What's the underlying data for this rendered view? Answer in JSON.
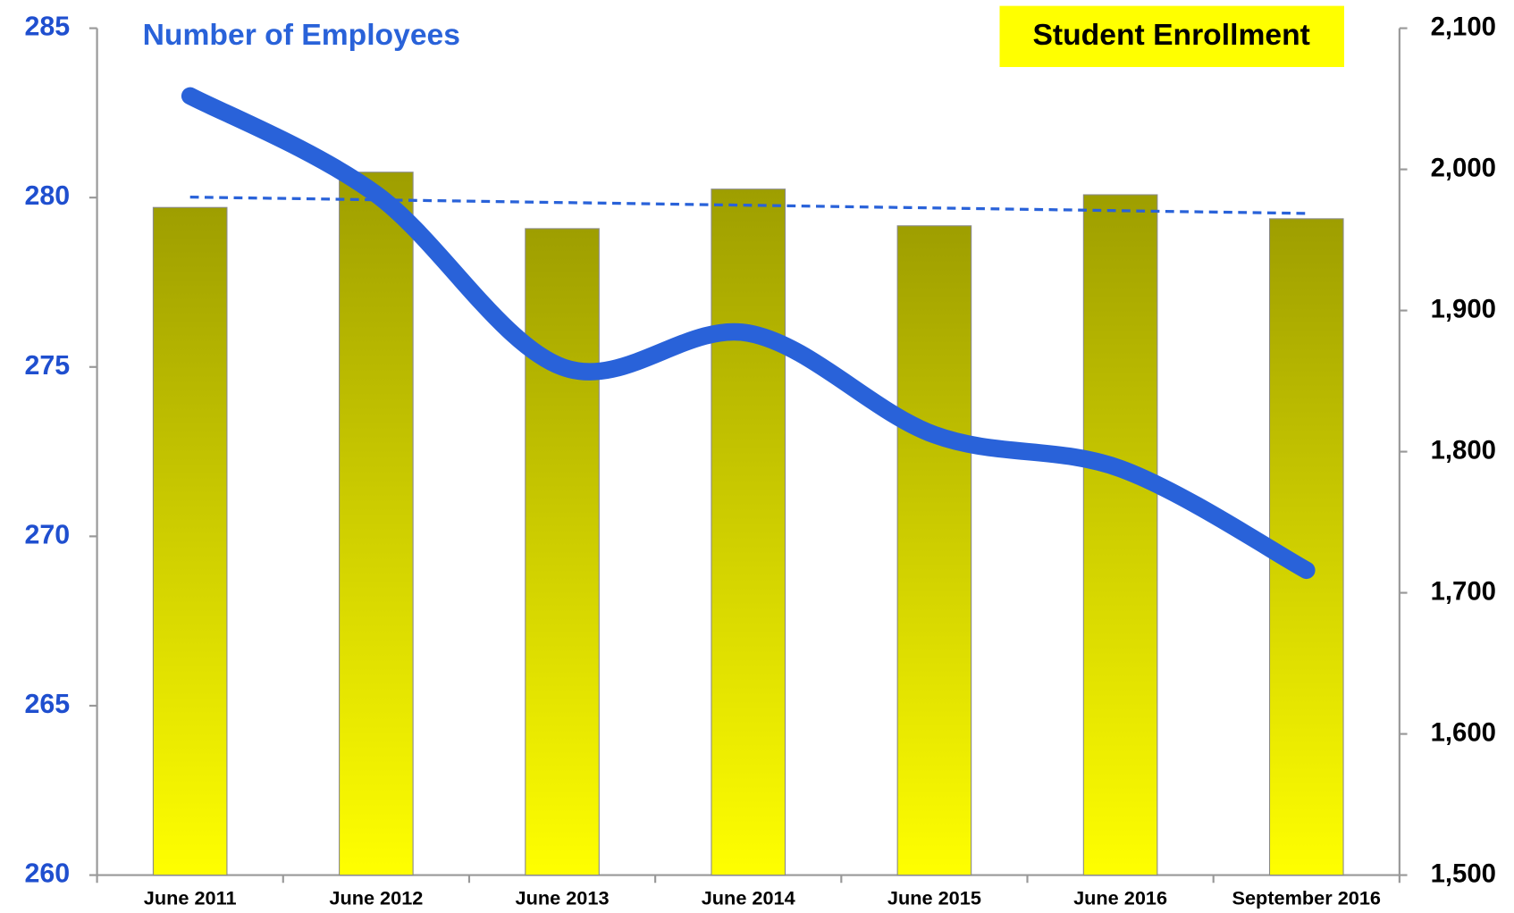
{
  "chart_data": {
    "type": "bar_line_dual_axis",
    "categories": [
      "June 2011",
      "June 2012",
      "June 2013",
      "June 2014",
      "June 2015",
      "June 2016",
      "September 2016"
    ],
    "series": [
      {
        "name": "Student Enrollment",
        "type": "bar",
        "axis": "y2",
        "color": "#9e9e00",
        "color_bottom": "#ffff00",
        "legend_background": "#ffff00",
        "values": [
          1973,
          1998,
          1958,
          1986,
          1960,
          1982,
          1965
        ],
        "trendline": true,
        "trendline_color": "#2962d9"
      },
      {
        "name": "Number of Employees",
        "type": "line",
        "axis": "y",
        "color": "#2962d9",
        "values": [
          283,
          280.1,
          275,
          276,
          273,
          272,
          269
        ]
      }
    ],
    "ylim": [
      260,
      285
    ],
    "yticks": [
      260,
      265,
      270,
      275,
      280,
      285
    ],
    "ytick_color": "#1f4fcf",
    "y2lim": [
      1500,
      2100
    ],
    "y2ticks": [
      {
        "value": 1500,
        "label": "1,500"
      },
      {
        "value": 1600,
        "label": "1,600"
      },
      {
        "value": 1700,
        "label": "1,700"
      },
      {
        "value": 1800,
        "label": "1,800"
      },
      {
        "value": 1900,
        "label": "1,900"
      },
      {
        "value": 2000,
        "label": "2,000"
      },
      {
        "value": 2100,
        "label": "2,100"
      }
    ]
  }
}
